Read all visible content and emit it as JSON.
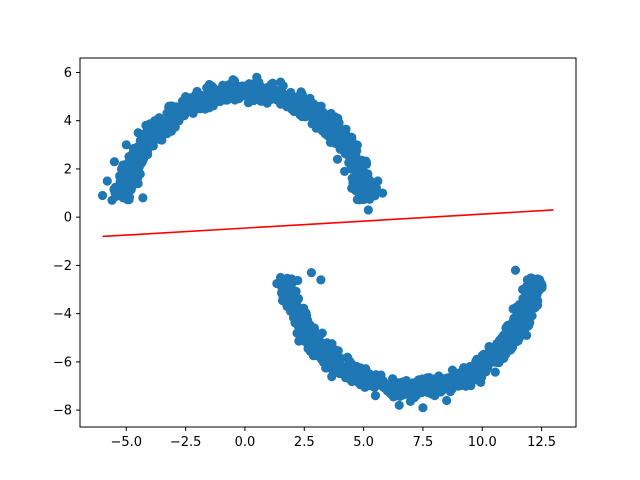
{
  "chart_data": {
    "type": "scatter",
    "title": "",
    "xlabel": "",
    "ylabel": "",
    "xlim": [
      -6.95,
      13.95
    ],
    "ylim": [
      -8.7,
      6.6
    ],
    "xticks": [
      -5.0,
      -2.5,
      0.0,
      2.5,
      5.0,
      7.5,
      10.0,
      12.5
    ],
    "xtick_labels": [
      "−5.0",
      "−2.5",
      "0.0",
      "2.5",
      "5.0",
      "7.5",
      "10.0",
      "12.5"
    ],
    "yticks": [
      -8,
      -6,
      -4,
      -2,
      0,
      2,
      4,
      6
    ],
    "ytick_labels": [
      "−8",
      "−6",
      "−4",
      "−2",
      "0",
      "2",
      "4",
      "6"
    ],
    "grid": false,
    "series": [
      {
        "kind": "scatter",
        "color": "#1f77b4",
        "note": "two interleaved half-moon clusters",
        "clusters": [
          {
            "shape": "upper-arc",
            "center": [
              0.0,
              0.0
            ],
            "radius": 5.2,
            "band_half_width": 0.55,
            "angle_range_deg": [
              8,
              172
            ]
          },
          {
            "shape": "lower-arc",
            "center": [
              7.0,
              -1.8
            ],
            "radius": 5.3,
            "band_half_width": 0.55,
            "angle_range_deg": [
              188,
              352
            ]
          }
        ],
        "points": [
          [
            -6.0,
            0.9
          ],
          [
            -5.8,
            1.5
          ],
          [
            -5.6,
            0.7
          ],
          [
            -5.5,
            2.3
          ],
          [
            -5.2,
            2.0
          ],
          [
            -5.0,
            3.0
          ],
          [
            -4.8,
            1.2
          ],
          [
            -4.5,
            3.5
          ],
          [
            -4.3,
            0.8
          ],
          [
            -4.1,
            2.6
          ],
          [
            -3.8,
            4.0
          ],
          [
            -3.5,
            3.2
          ],
          [
            -3.2,
            4.6
          ],
          [
            -2.8,
            4.1
          ],
          [
            -2.5,
            5.0
          ],
          [
            -2.0,
            4.6
          ],
          [
            -1.5,
            5.5
          ],
          [
            -1.0,
            5.1
          ],
          [
            -0.5,
            5.7
          ],
          [
            0.0,
            5.3
          ],
          [
            0.5,
            5.8
          ],
          [
            1.0,
            5.2
          ],
          [
            1.5,
            5.6
          ],
          [
            2.0,
            4.8
          ],
          [
            2.5,
            4.9
          ],
          [
            3.0,
            4.2
          ],
          [
            3.3,
            3.8
          ],
          [
            3.6,
            3.1
          ],
          [
            3.9,
            2.4
          ],
          [
            4.2,
            1.9
          ],
          [
            4.5,
            1.2
          ],
          [
            4.7,
            2.0
          ],
          [
            5.0,
            0.8
          ],
          [
            5.2,
            0.3
          ],
          [
            5.6,
            1.5
          ],
          [
            5.8,
            1.0
          ],
          [
            1.5,
            -2.5
          ],
          [
            1.8,
            -3.2
          ],
          [
            2.0,
            -2.6
          ],
          [
            2.2,
            -3.8
          ],
          [
            2.4,
            -4.4
          ],
          [
            2.8,
            -2.3
          ],
          [
            3.0,
            -4.8
          ],
          [
            3.2,
            -2.6
          ],
          [
            3.5,
            -5.5
          ],
          [
            4.0,
            -5.9
          ],
          [
            4.5,
            -6.6
          ],
          [
            5.0,
            -6.9
          ],
          [
            5.5,
            -7.4
          ],
          [
            6.0,
            -7.2
          ],
          [
            6.5,
            -7.8
          ],
          [
            7.0,
            -7.5
          ],
          [
            7.5,
            -7.9
          ],
          [
            8.0,
            -7.4
          ],
          [
            8.5,
            -7.6
          ],
          [
            9.0,
            -7.0
          ],
          [
            9.5,
            -6.8
          ],
          [
            10.0,
            -6.1
          ],
          [
            10.5,
            -5.5
          ],
          [
            11.0,
            -4.6
          ],
          [
            11.3,
            -3.8
          ],
          [
            11.4,
            -2.2
          ],
          [
            11.7,
            -3.0
          ],
          [
            12.0,
            -3.6
          ],
          [
            12.3,
            -3.2
          ],
          [
            11.9,
            -2.6
          ]
        ]
      },
      {
        "kind": "line",
        "color": "#ff0000",
        "x": [
          -6.0,
          13.0
        ],
        "y": [
          -0.8,
          0.3
        ]
      }
    ]
  }
}
